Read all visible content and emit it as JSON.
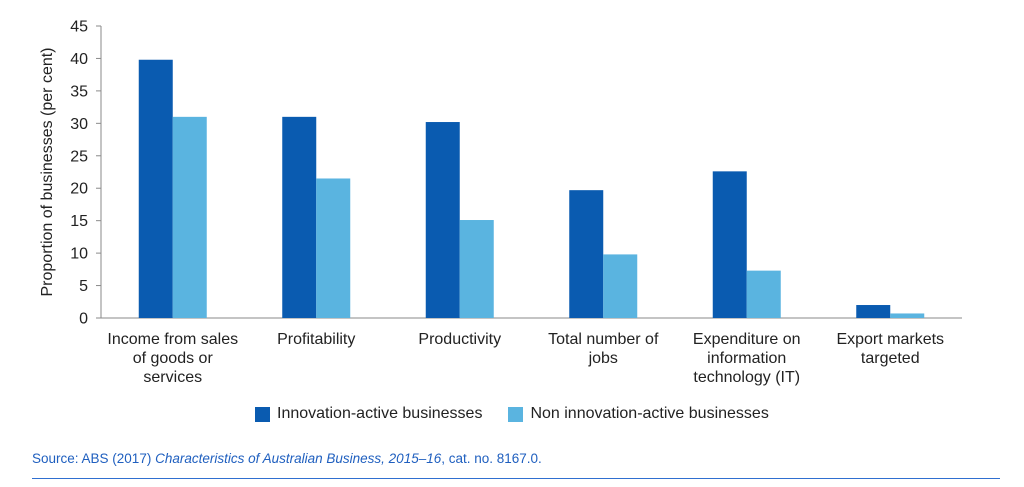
{
  "chart_data": {
    "type": "bar",
    "ylabel": "Proportion of businesses (per cent)",
    "xlabel": "",
    "ylim": [
      0,
      45
    ],
    "yticks": [
      0,
      5,
      10,
      15,
      20,
      25,
      30,
      35,
      40,
      45
    ],
    "categories": [
      [
        "Income from sales",
        "of goods or",
        "services"
      ],
      [
        "Profitability"
      ],
      [
        "Productivity"
      ],
      [
        "Total number of",
        "jobs"
      ],
      [
        "Expenditure on",
        "information",
        "technology (IT)"
      ],
      [
        "Export markets",
        "targeted"
      ]
    ],
    "series": [
      {
        "name": "Innovation-active businesses",
        "color": "#0a5bb0",
        "values": [
          39.8,
          31.0,
          30.2,
          19.7,
          22.6,
          2.0
        ]
      },
      {
        "name": "Non innovation-active businesses",
        "color": "#5ab4e0",
        "values": [
          31.0,
          21.5,
          15.1,
          9.8,
          7.3,
          0.7
        ]
      }
    ],
    "grid": false,
    "legend_position": "bottom"
  },
  "source": {
    "prefix": "Source: ABS (2017) ",
    "title": "Characteristics of Australian Business, 2015–16",
    "suffix": ", cat. no. 8167.0."
  }
}
